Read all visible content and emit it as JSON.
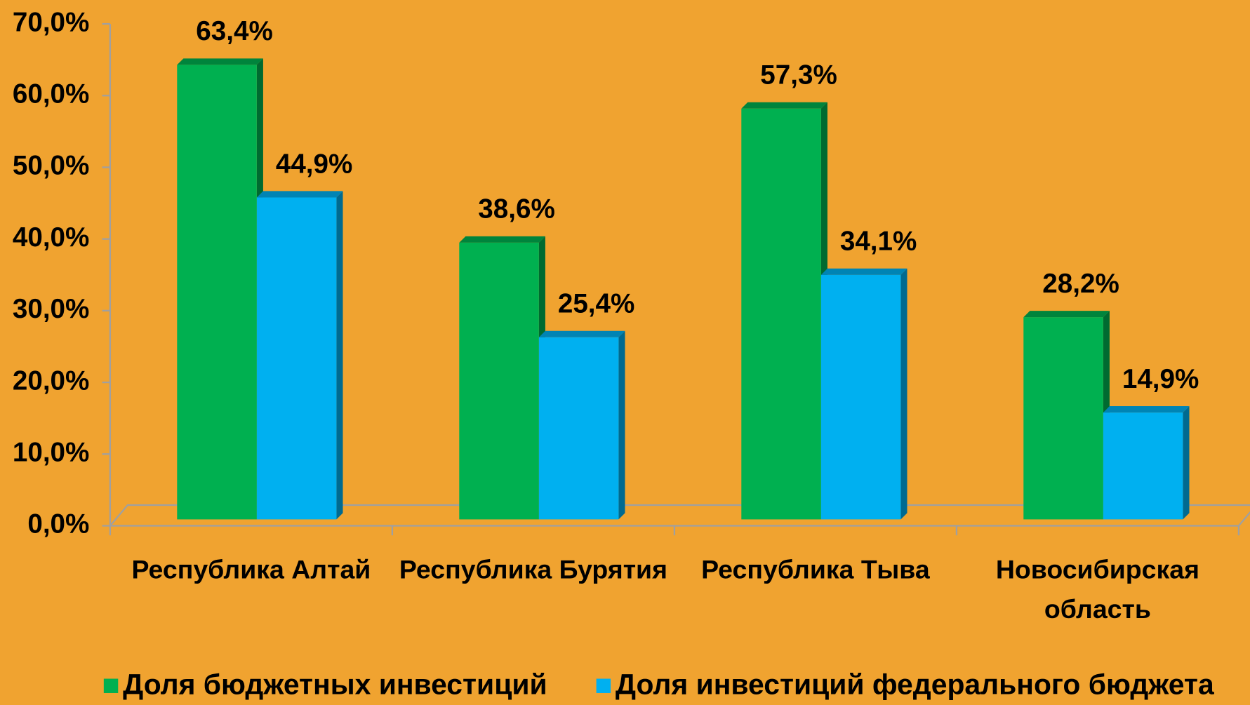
{
  "chart_data": {
    "type": "bar",
    "categories": [
      "Республика Алтай",
      "Республика Бурятия",
      "Республика Тыва",
      "Новосибирская область"
    ],
    "series": [
      {
        "name": "Доля бюджетных инвестиций",
        "color": "#00b050",
        "values": [
          63.4,
          38.6,
          57.3,
          28.2
        ],
        "value_labels": [
          "63,4%",
          "38,6%",
          "57,3%",
          "28,2%"
        ]
      },
      {
        "name": "Доля инвестиций федерального бюджета",
        "color": "#00b0f0",
        "values": [
          44.9,
          25.4,
          34.1,
          14.9
        ],
        "value_labels": [
          "44,9%",
          "25,4%",
          "34,1%",
          "14,9%"
        ]
      }
    ],
    "ylim": [
      0,
      70
    ],
    "yticks": [
      {
        "value": 0,
        "label": "0,0%"
      },
      {
        "value": 10,
        "label": "10,0%"
      },
      {
        "value": 20,
        "label": "20,0%"
      },
      {
        "value": 30,
        "label": "30,0%"
      },
      {
        "value": 40,
        "label": "40,0%"
      },
      {
        "value": 50,
        "label": "50,0%"
      },
      {
        "value": 60,
        "label": "60,0%"
      },
      {
        "value": 70,
        "label": "70,0%"
      }
    ],
    "legend": "bottom"
  }
}
